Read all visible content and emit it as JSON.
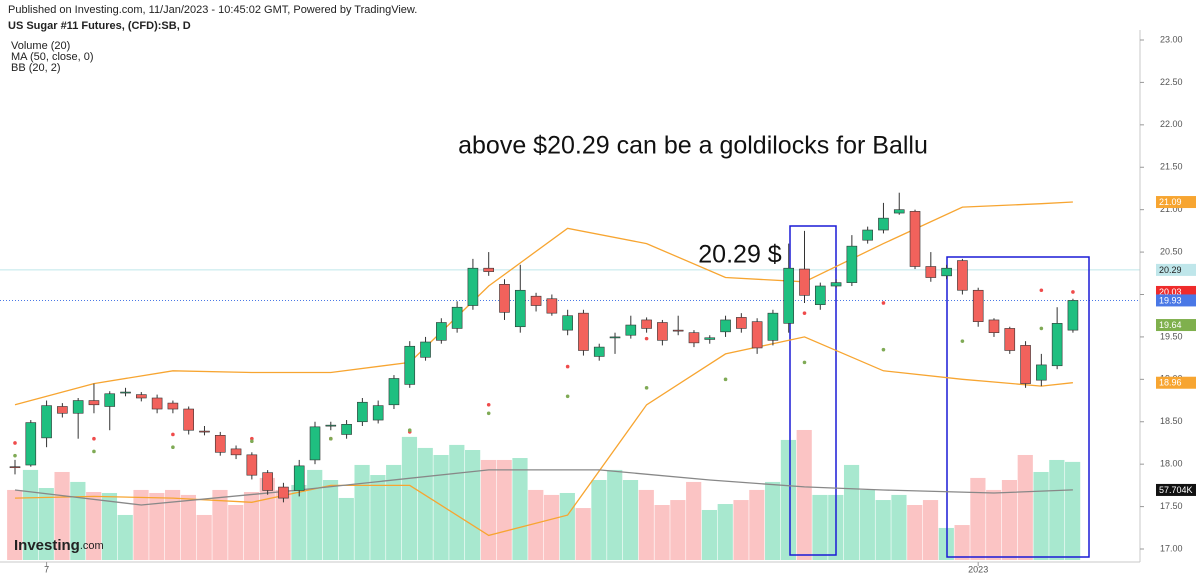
{
  "chart_data": {
    "type": "candlestick",
    "publisher": "Published on Investing.com, 11/Jan/2023 - 10:45:02 GMT, Powered by TradingView.",
    "title": "US Sugar #11 Futures, (CFD):SB, D",
    "indicators": [
      "Volume (20)",
      "MA (50, close, 0)",
      "BB (20, 2)"
    ],
    "annotations": [
      "above $20.29 can be a goldilocks for Ballu",
      "20.29 $"
    ],
    "logo": [
      "Investing",
      ".com"
    ],
    "ylim": [
      17,
      23
    ],
    "yticks": [
      {
        "value": 17,
        "label": "17.00"
      },
      {
        "value": 17.5,
        "label": "17.50"
      },
      {
        "value": 18,
        "label": "18.00"
      },
      {
        "value": 18.5,
        "label": "18.50"
      },
      {
        "value": 19,
        "label": "19.00"
      },
      {
        "value": 19.5,
        "label": "19.50"
      },
      {
        "value": 20,
        "label": "20.00"
      },
      {
        "value": 20.5,
        "label": "20.50"
      },
      {
        "value": 21,
        "label": "21.00"
      },
      {
        "value": 21.5,
        "label": "21.50"
      },
      {
        "value": 22,
        "label": "22.00"
      },
      {
        "value": 22.5,
        "label": "22.50"
      },
      {
        "value": 23,
        "label": "23.00"
      }
    ],
    "x_labels": [
      {
        "index": 2,
        "label": "7"
      },
      {
        "index": 61,
        "label": "2023"
      }
    ],
    "up_color": "#1fbf80",
    "down_color": "#f2625c",
    "volume_up_color": "#a8e8cf",
    "volume_down_color": "#fbc4c4",
    "candles": {
      "open": [
        17.97,
        17.99,
        18.31,
        18.68,
        18.6,
        18.75,
        18.68,
        18.84,
        18.82,
        18.78,
        18.72,
        18.65,
        18.39,
        18.34,
        18.18,
        18.11,
        17.9,
        17.73,
        17.69,
        18.05,
        18.45,
        18.35,
        18.5,
        18.52,
        18.7,
        18.94,
        19.26,
        19.46,
        19.6,
        19.87,
        20.31,
        20.12,
        19.62,
        19.98,
        19.95,
        19.58,
        19.78,
        19.27,
        19.49,
        19.52,
        19.7,
        19.67,
        19.58,
        19.55,
        19.47,
        19.56,
        19.73,
        19.68,
        19.46,
        19.66,
        20.3,
        19.88,
        20.1,
        20.14,
        20.64,
        20.76,
        20.96,
        20.98,
        20.33,
        20.22,
        20.4,
        20.05,
        19.7,
        19.6,
        19.4,
        18.99,
        19.16,
        19.58
      ],
      "high": [
        18.05,
        18.52,
        18.75,
        18.72,
        18.78,
        18.95,
        18.86,
        18.9,
        18.85,
        18.82,
        18.75,
        18.68,
        18.45,
        18.38,
        18.22,
        18.14,
        17.93,
        17.78,
        18.05,
        18.5,
        18.5,
        18.52,
        18.78,
        18.75,
        19.05,
        19.45,
        19.5,
        19.72,
        19.92,
        20.42,
        20.5,
        20.18,
        20.35,
        20.02,
        20.0,
        19.82,
        19.82,
        19.42,
        19.55,
        19.75,
        19.73,
        19.7,
        19.75,
        19.58,
        19.52,
        19.75,
        19.78,
        19.72,
        19.82,
        20.6,
        20.75,
        20.14,
        20.18,
        20.7,
        20.8,
        21.08,
        21.2,
        21.0,
        20.5,
        20.35,
        20.42,
        20.08,
        19.72,
        19.62,
        19.45,
        19.3,
        19.85,
        19.95
      ],
      "low": [
        17.88,
        17.97,
        18.2,
        18.55,
        18.3,
        18.6,
        18.4,
        18.8,
        18.74,
        18.6,
        18.6,
        18.35,
        18.34,
        18.1,
        18.06,
        17.82,
        17.64,
        17.55,
        17.62,
        18.0,
        18.4,
        18.3,
        18.45,
        18.48,
        18.65,
        18.9,
        19.22,
        19.42,
        19.55,
        19.82,
        20.22,
        19.7,
        19.55,
        19.8,
        19.75,
        19.52,
        19.28,
        19.22,
        19.3,
        19.48,
        19.55,
        19.4,
        19.52,
        19.38,
        19.42,
        19.5,
        19.55,
        19.3,
        19.4,
        19.55,
        19.9,
        19.82,
        20.08,
        20.1,
        20.6,
        20.72,
        20.94,
        20.3,
        20.15,
        20.18,
        20.0,
        19.62,
        19.5,
        19.3,
        18.9,
        18.92,
        19.12,
        19.55
      ],
      "close": [
        17.96,
        18.49,
        18.69,
        18.6,
        18.75,
        18.7,
        18.83,
        18.85,
        18.78,
        18.65,
        18.65,
        18.4,
        18.38,
        18.14,
        18.11,
        17.87,
        17.69,
        17.6,
        17.98,
        18.44,
        18.46,
        18.47,
        18.73,
        18.69,
        19.01,
        19.39,
        19.44,
        19.67,
        19.85,
        20.31,
        20.27,
        19.79,
        20.05,
        19.87,
        19.78,
        19.75,
        19.34,
        19.38,
        19.5,
        19.64,
        19.6,
        19.46,
        19.57,
        19.43,
        19.49,
        19.7,
        19.6,
        19.37,
        19.78,
        20.31,
        19.99,
        20.1,
        20.14,
        20.57,
        20.76,
        20.9,
        21.0,
        20.33,
        20.2,
        20.31,
        20.05,
        19.68,
        19.55,
        19.34,
        18.95,
        19.17,
        19.66,
        19.93
      ]
    },
    "volume": [
      57.7,
      74.2,
      59.3,
      72.5,
      64.3,
      56.0,
      55.2,
      37.1,
      57.7,
      55.2,
      57.7,
      53.6,
      37.1,
      57.7,
      45.3,
      56.0,
      67.6,
      57.7,
      61.8,
      74.2,
      65.9,
      51.1,
      78.3,
      70.0,
      78.3,
      101.4,
      92.3,
      86.5,
      94.8,
      90.6,
      82.4,
      82.4,
      84.0,
      57.7,
      53.6,
      55.2,
      42.8,
      65.9,
      74.2,
      65.9,
      57.7,
      45.3,
      49.4,
      64.3,
      41.2,
      46.1,
      49.4,
      57.7,
      64.3,
      98.9,
      107.1,
      53.6,
      53.6,
      78.3,
      57.7,
      49.4,
      53.6,
      45.3,
      49.4,
      26.4,
      28.8,
      67.6,
      57.7,
      65.9,
      86.5,
      72.5,
      82.4,
      80.8
    ],
    "overlays": [
      {
        "pane": "price",
        "style": "line",
        "color": "#f7a531",
        "x": [
          0,
          5,
          10,
          15,
          20,
          25,
          30,
          35,
          40,
          45,
          50,
          55,
          60,
          65,
          67
        ],
        "values": [
          18.7,
          18.95,
          19.1,
          19.08,
          19.08,
          19.2,
          20.1,
          20.78,
          20.6,
          20.2,
          20.15,
          20.6,
          21.03,
          21.07,
          21.09
        ]
      },
      {
        "pane": "price",
        "style": "line",
        "color": "#f7a531",
        "x": [
          0,
          5,
          10,
          15,
          20,
          25,
          30,
          35,
          40,
          45,
          50,
          55,
          60,
          65,
          67
        ],
        "values": [
          17.6,
          17.62,
          17.6,
          17.55,
          17.75,
          17.75,
          17.16,
          17.4,
          18.7,
          19.3,
          19.5,
          19.1,
          19.0,
          18.92,
          18.96
        ]
      },
      {
        "pane": "price",
        "style": "dots",
        "color": "#ef4b4b",
        "x": [
          0,
          5,
          10,
          15,
          20,
          25,
          30,
          35,
          40,
          45,
          50,
          55,
          60,
          65,
          67
        ],
        "values": [
          18.25,
          18.3,
          18.35,
          18.3,
          18.3,
          18.38,
          18.7,
          19.15,
          19.48,
          19.62,
          19.78,
          19.9,
          20.08,
          20.05,
          20.03
        ]
      },
      {
        "pane": "price",
        "style": "dots",
        "color": "#7faa55",
        "x": [
          0,
          5,
          10,
          15,
          20,
          25,
          30,
          35,
          40,
          45,
          50,
          55,
          60,
          65,
          67
        ],
        "values": [
          18.1,
          18.15,
          18.2,
          18.27,
          18.3,
          18.4,
          18.6,
          18.8,
          18.9,
          19.0,
          19.2,
          19.35,
          19.45,
          19.6,
          19.64
        ]
      },
      {
        "pane": "volume",
        "style": "line",
        "color": "#888888",
        "x": [
          0,
          8,
          18,
          30,
          37,
          44,
          50,
          55,
          62,
          67
        ],
        "values": [
          57.7,
          45.3,
          57.7,
          74.2,
          74.2,
          65.9,
          60.2,
          57.7,
          55.2,
          57.704
        ]
      }
    ],
    "price_labels": [
      {
        "value": 21.09,
        "label": "21.09",
        "color": "#f7a531"
      },
      {
        "value": 20.29,
        "label": "20.29",
        "color": "#bfe6ea",
        "line": "solid"
      },
      {
        "value": 20.03,
        "label": "20.03",
        "color": "#ef2b2b"
      },
      {
        "value": 19.93,
        "label": "19.93",
        "color": "#4a78e6",
        "line": "dotted"
      },
      {
        "value": 19.64,
        "label": "19.64",
        "color": "#7fb04d"
      },
      {
        "value": 18.96,
        "label": "18.96",
        "color": "#f7a531"
      }
    ],
    "volume_labels": [
      {
        "value": 57.704,
        "label": "57.704K",
        "color": "#111111"
      }
    ]
  }
}
